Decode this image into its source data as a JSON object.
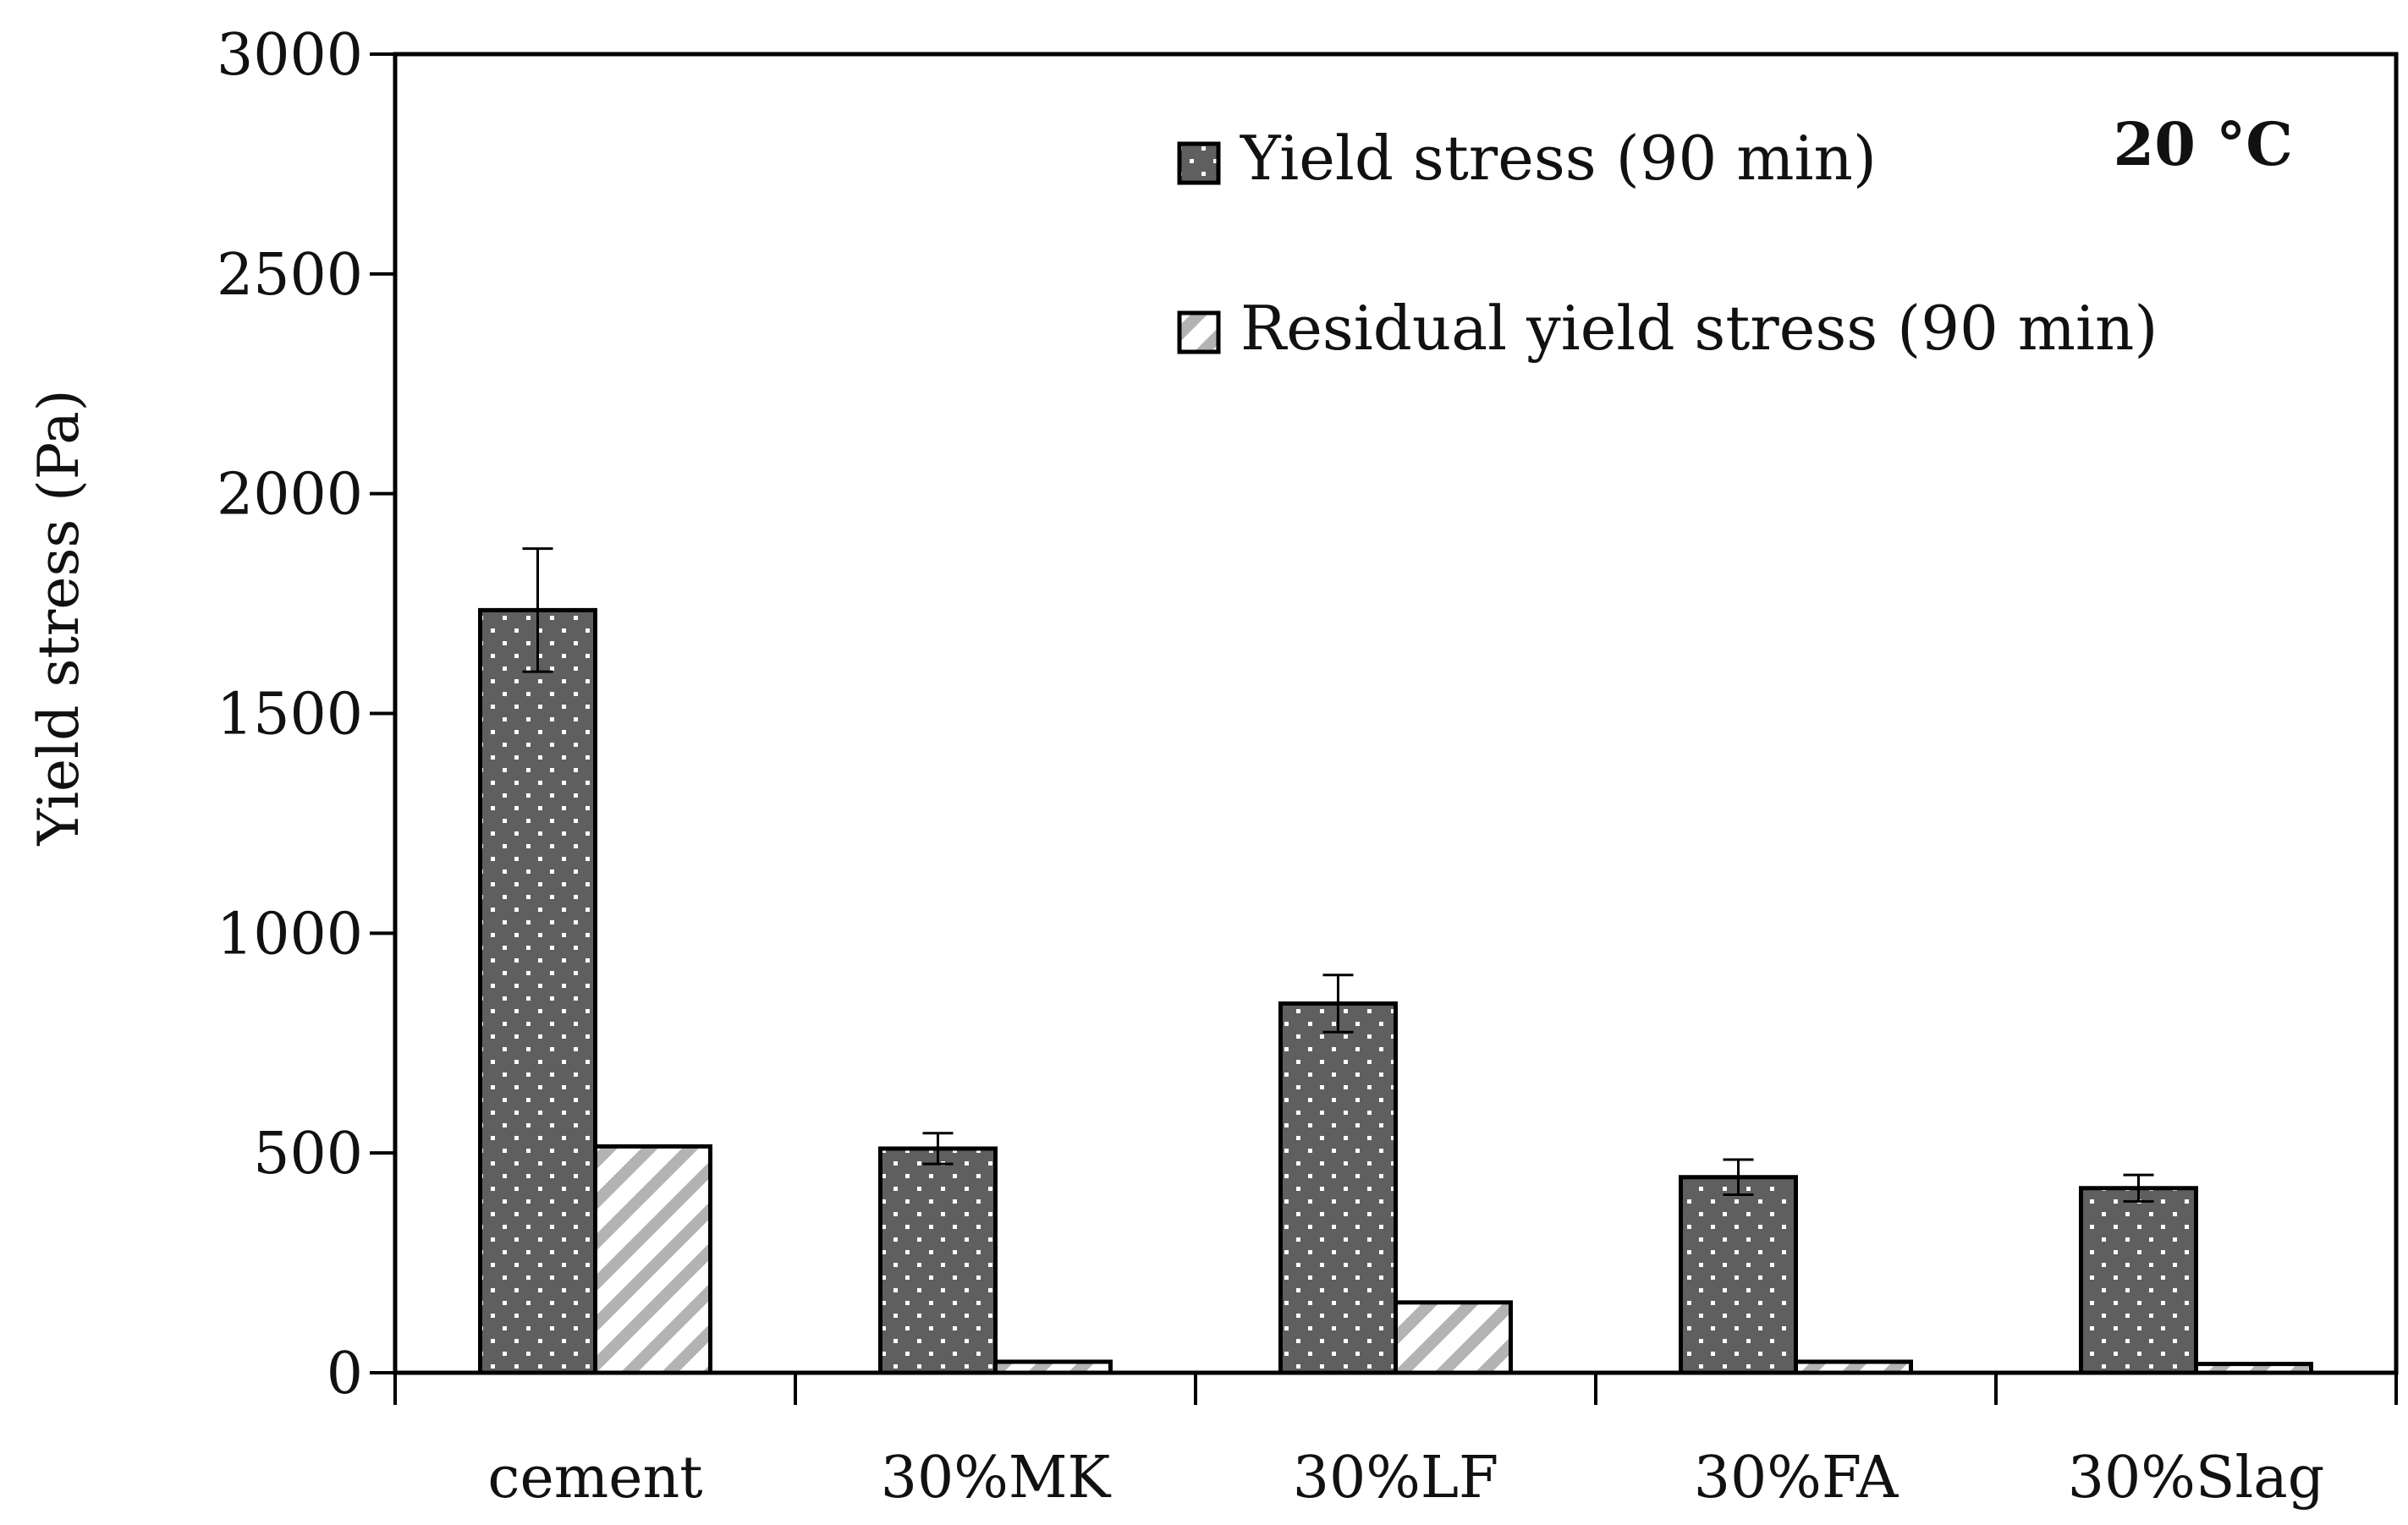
{
  "chart_data": {
    "type": "bar",
    "title": "",
    "annotation": "20 °C",
    "xlabel": "",
    "ylabel": "Yield stress (Pa)",
    "ylim": [
      0,
      3000
    ],
    "yticks": [
      0,
      500,
      1000,
      1500,
      2000,
      2500,
      3000
    ],
    "ytick_labels": [
      "0",
      "500",
      "1000",
      "1500",
      "2000",
      "2500",
      "3000"
    ],
    "grid": false,
    "legend_position": "top-right",
    "categories": [
      "cement",
      "30%MK",
      "30%LF",
      "30%FA",
      "30%Slag"
    ],
    "series": [
      {
        "name": "Yield stress (90 min)",
        "pattern": "dotted",
        "color": "#5f5f5f",
        "values": [
          1735,
          510,
          840,
          445,
          420
        ],
        "error": [
          140,
          35,
          65,
          40,
          30
        ]
      },
      {
        "name": "Residual yield stress (90 min)",
        "pattern": "hatched",
        "color": "#b3b3b3",
        "values": [
          515,
          25,
          160,
          25,
          20
        ],
        "error": null
      }
    ]
  }
}
